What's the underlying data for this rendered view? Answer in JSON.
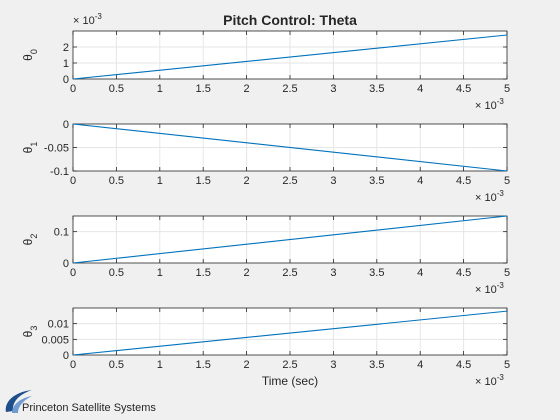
{
  "colors": {
    "series": "#0072bd",
    "logo": "#1f4e8c"
  },
  "logo": {
    "text": "Princeton Satellite Systems",
    "icon": "swoosh-logo-icon"
  },
  "chart_data": [
    {
      "type": "line",
      "title": "Pitch Control: Theta",
      "ylabel_base": "θ",
      "ylabel_sub": "0",
      "xlabel": "",
      "xlim": [
        0,
        0.005
      ],
      "ylim": [
        0,
        0.003
      ],
      "x_ticks": [
        "0",
        "0.5",
        "1",
        "1.5",
        "2",
        "2.5",
        "3",
        "3.5",
        "4",
        "4.5",
        "5"
      ],
      "x_exponent_base": "× 10",
      "x_exponent_power": "-3",
      "y_ticks": [
        {
          "value": 0,
          "label": "0"
        },
        {
          "value": 0.001,
          "label": "1"
        },
        {
          "value": 0.002,
          "label": "2"
        }
      ],
      "y_exponent_base": "× 10",
      "y_exponent_power": "-3",
      "grid": true,
      "series": [
        {
          "x": [
            0,
            0.005
          ],
          "y": [
            0,
            0.00275
          ]
        }
      ]
    },
    {
      "type": "line",
      "title": "",
      "ylabel_base": "θ",
      "ylabel_sub": "1",
      "xlabel": "",
      "xlim": [
        0,
        0.005
      ],
      "ylim": [
        -0.1,
        0
      ],
      "x_ticks": [
        "0",
        "0.5",
        "1",
        "1.5",
        "2",
        "2.5",
        "3",
        "3.5",
        "4",
        "4.5",
        "5"
      ],
      "x_exponent_base": "× 10",
      "x_exponent_power": "-3",
      "y_ticks": [
        {
          "value": -0.1,
          "label": "-0.1"
        },
        {
          "value": -0.05,
          "label": "-0.05"
        },
        {
          "value": 0,
          "label": "0"
        }
      ],
      "grid": true,
      "series": [
        {
          "x": [
            0,
            0.005
          ],
          "y": [
            0,
            -0.1
          ]
        }
      ]
    },
    {
      "type": "line",
      "title": "",
      "ylabel_base": "θ",
      "ylabel_sub": "2",
      "xlabel": "",
      "xlim": [
        0,
        0.005
      ],
      "ylim": [
        0,
        0.15
      ],
      "x_ticks": [
        "0",
        "0.5",
        "1",
        "1.5",
        "2",
        "2.5",
        "3",
        "3.5",
        "4",
        "4.5",
        "5"
      ],
      "x_exponent_base": "× 10",
      "x_exponent_power": "-3",
      "y_ticks": [
        {
          "value": 0,
          "label": "0"
        },
        {
          "value": 0.1,
          "label": "0.1"
        }
      ],
      "grid": true,
      "series": [
        {
          "x": [
            0,
            0.005
          ],
          "y": [
            0,
            0.15
          ]
        }
      ]
    },
    {
      "type": "line",
      "title": "",
      "ylabel_base": "θ",
      "ylabel_sub": "3",
      "xlabel": "Time (sec)",
      "xlim": [
        0,
        0.005
      ],
      "ylim": [
        0,
        0.015
      ],
      "x_ticks": [
        "0",
        "0.5",
        "1",
        "1.5",
        "2",
        "2.5",
        "3",
        "3.5",
        "4",
        "4.5",
        "5"
      ],
      "x_exponent_base": "× 10",
      "x_exponent_power": "-3",
      "y_ticks": [
        {
          "value": 0,
          "label": "0"
        },
        {
          "value": 0.005,
          "label": "0.005"
        },
        {
          "value": 0.01,
          "label": "0.01"
        }
      ],
      "grid": true,
      "series": [
        {
          "x": [
            0,
            0.005
          ],
          "y": [
            0,
            0.014
          ]
        }
      ]
    }
  ]
}
